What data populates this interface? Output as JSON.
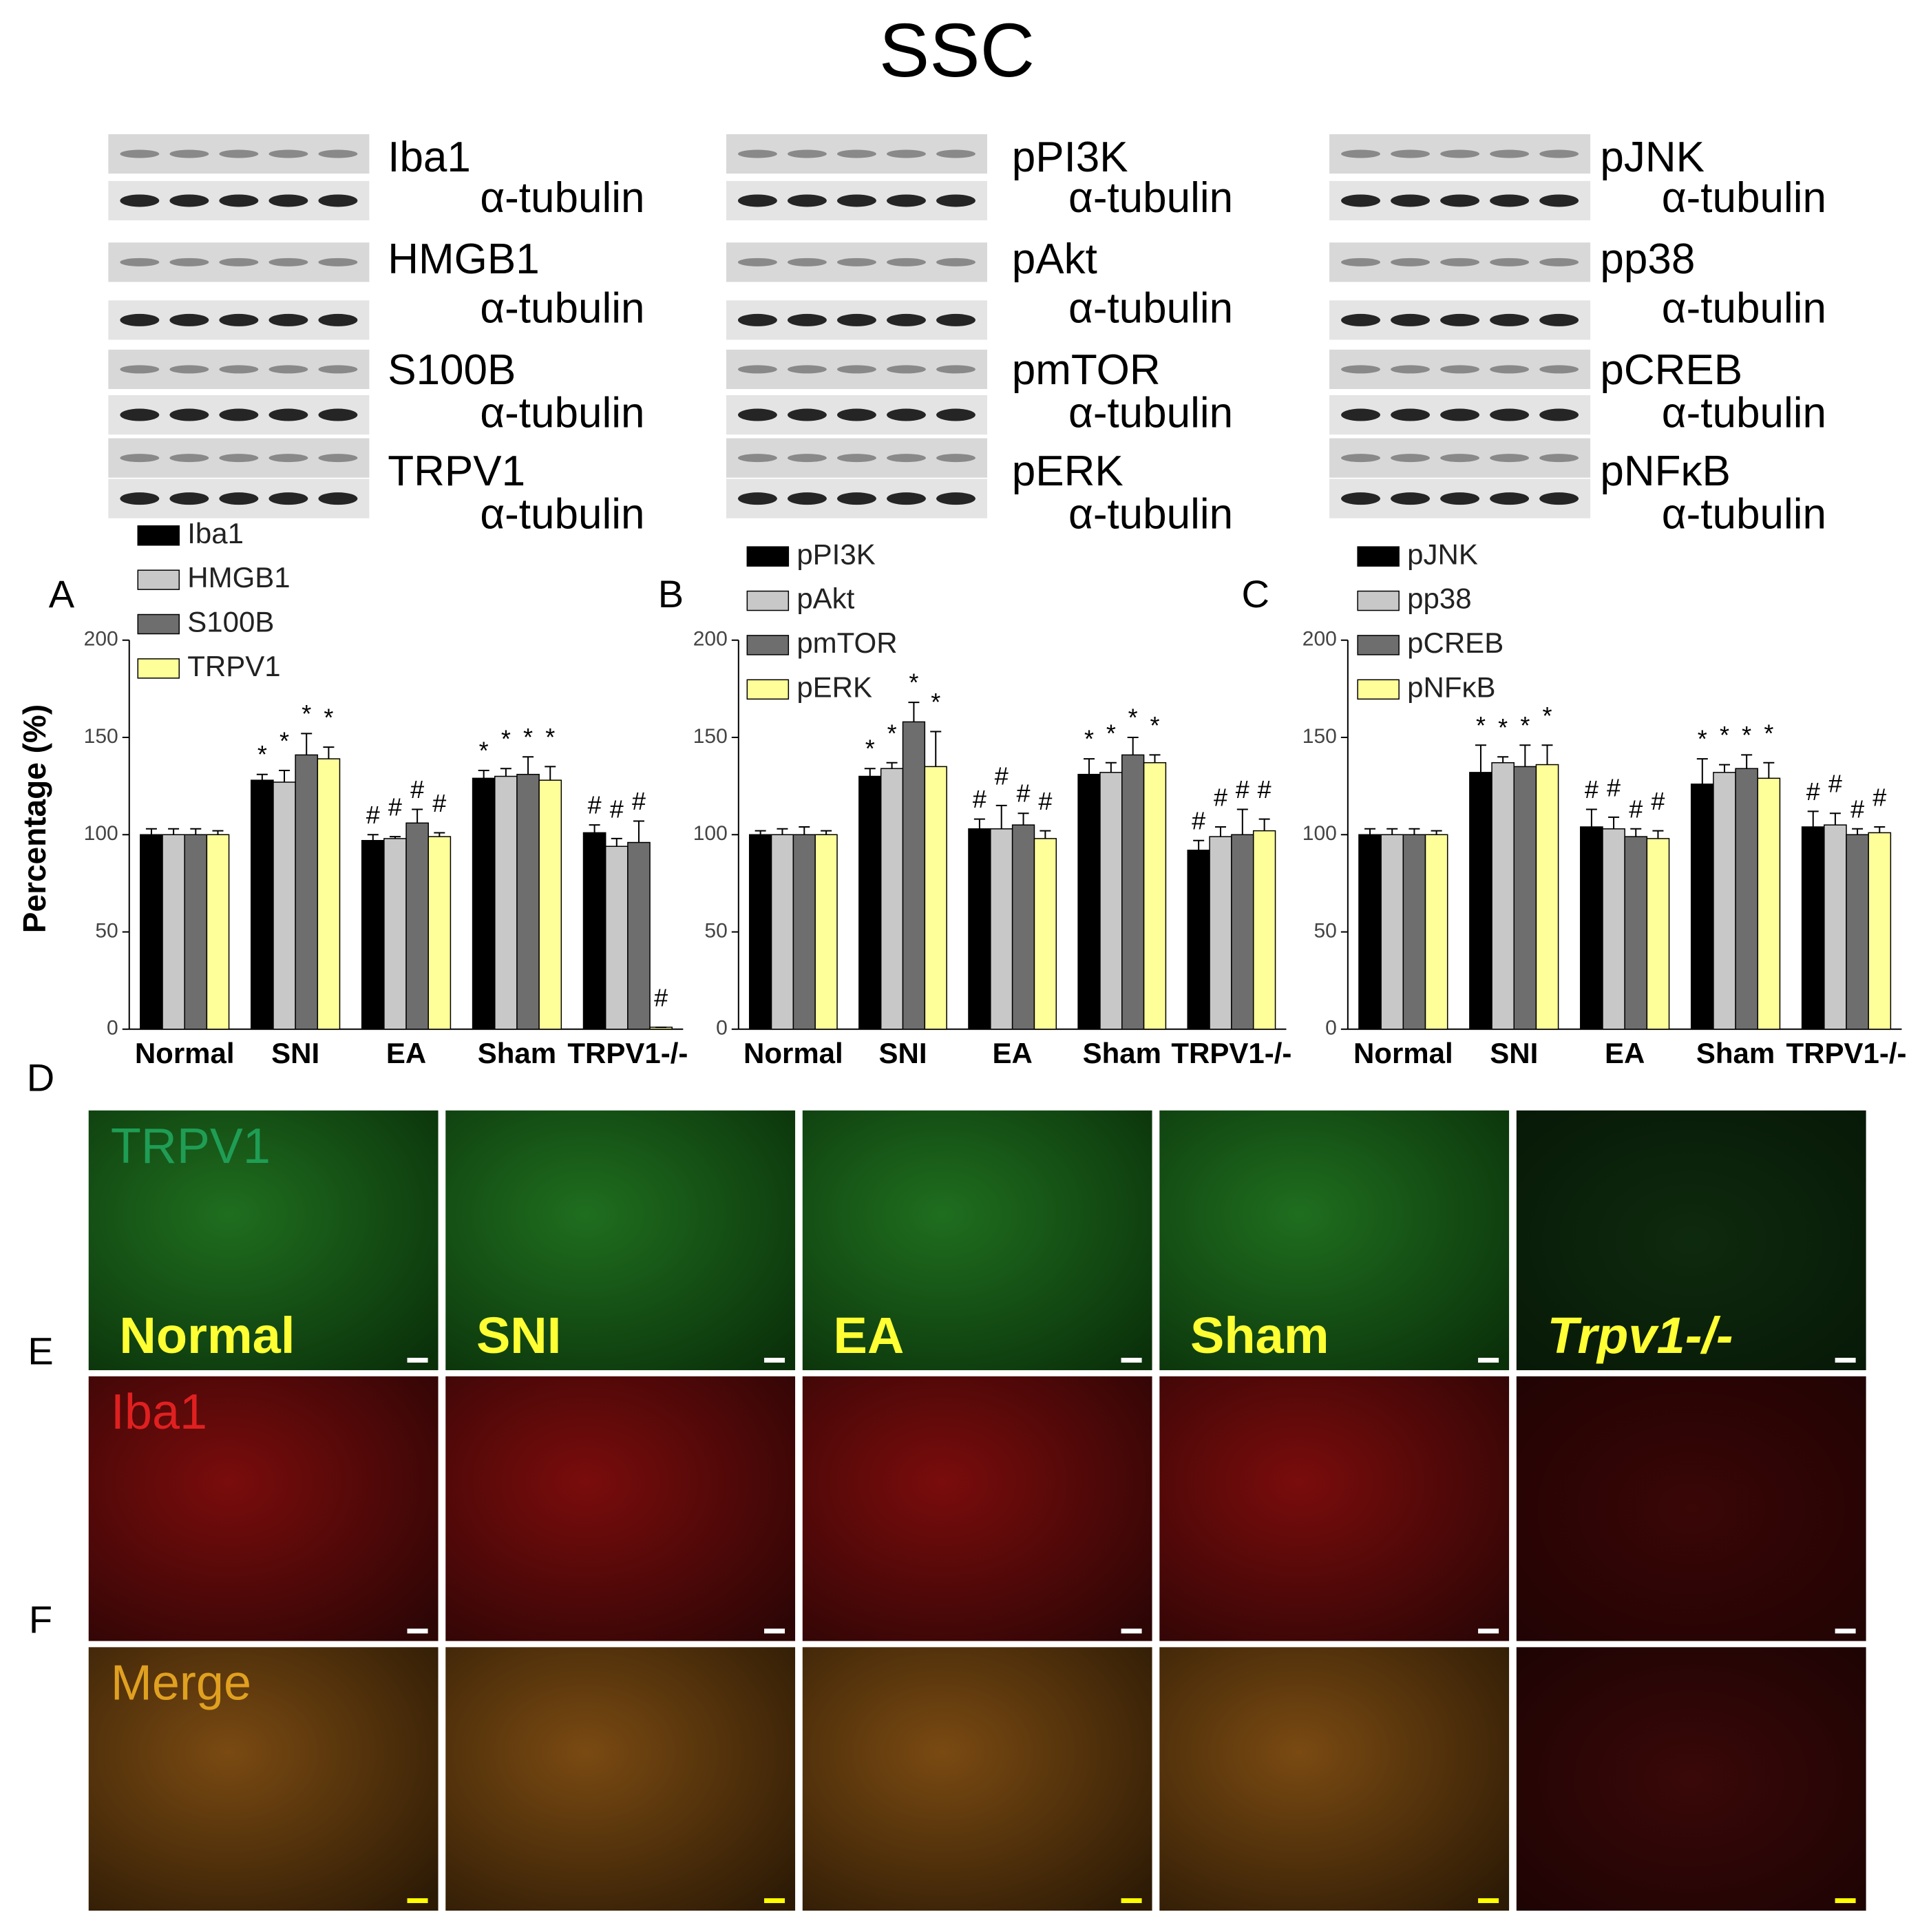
{
  "title": "SSC",
  "blots": [
    {
      "labels": [
        "Iba1",
        "α-tubulin",
        "HMGB1",
        "α-tubulin",
        "S100B",
        "α-tubulin",
        "TRPV1",
        "α-tubulin"
      ]
    },
    {
      "labels": [
        "pPI3K",
        "α-tubulin",
        "pAkt",
        "α-tubulin",
        "pmTOR",
        "α-tubulin",
        "pERK",
        "α-tubulin"
      ]
    },
    {
      "labels": [
        "pJNK",
        "α-tubulin",
        "pp38",
        "α-tubulin",
        "pCREB",
        "α-tubulin",
        "pNFκB",
        "α-tubulin"
      ]
    }
  ],
  "chart_data": [
    {
      "type": "bar",
      "panel": "A",
      "ylabel": "Percentage (%)",
      "categories": [
        "Normal",
        "SNI",
        "EA",
        "Sham",
        "TRPV1-/-"
      ],
      "ylim": [
        0,
        200
      ],
      "yticks": [
        0,
        50,
        100,
        150,
        200
      ],
      "series": [
        {
          "name": "Iba1",
          "color": "#000000",
          "values": [
            100,
            128,
            97,
            129,
            101
          ],
          "errors": [
            3,
            3,
            3,
            4,
            4
          ],
          "markers": [
            null,
            "*",
            "#",
            "*",
            "#"
          ]
        },
        {
          "name": "HMGB1",
          "color": "#c8c8c8",
          "values": [
            100,
            127,
            98,
            130,
            94
          ],
          "errors": [
            3,
            6,
            1,
            4,
            4
          ],
          "markers": [
            null,
            "*",
            "#",
            "*",
            "#"
          ]
        },
        {
          "name": "S100B",
          "color": "#6e6e6e",
          "values": [
            100,
            141,
            106,
            131,
            96
          ],
          "errors": [
            3,
            11,
            7,
            9,
            11
          ],
          "markers": [
            null,
            "*",
            "#",
            "*",
            "#"
          ]
        },
        {
          "name": "TRPV1",
          "color": "#ffff99",
          "values": [
            100,
            139,
            99,
            128,
            1
          ],
          "errors": [
            2,
            6,
            2,
            7,
            0
          ],
          "markers": [
            null,
            "*",
            "#",
            "*",
            "#"
          ]
        }
      ]
    },
    {
      "type": "bar",
      "panel": "B",
      "categories": [
        "Normal",
        "SNI",
        "EA",
        "Sham",
        "TRPV1-/-"
      ],
      "ylim": [
        0,
        200
      ],
      "yticks": [
        0,
        50,
        100,
        150,
        200
      ],
      "series": [
        {
          "name": "pPI3K",
          "color": "#000000",
          "values": [
            100,
            130,
            103,
            131,
            92
          ],
          "errors": [
            2,
            4,
            5,
            8,
            5
          ],
          "markers": [
            null,
            "*",
            "#",
            "*",
            "#"
          ]
        },
        {
          "name": "pAkt",
          "color": "#c8c8c8",
          "values": [
            100,
            134,
            103,
            132,
            99
          ],
          "errors": [
            3,
            3,
            12,
            5,
            5
          ],
          "markers": [
            null,
            "*",
            "#",
            "*",
            "#"
          ]
        },
        {
          "name": "pmTOR",
          "color": "#6e6e6e",
          "values": [
            100,
            158,
            105,
            141,
            100
          ],
          "errors": [
            4,
            10,
            6,
            9,
            13
          ],
          "markers": [
            null,
            "*",
            "#",
            "*",
            "#"
          ]
        },
        {
          "name": "pERK",
          "color": "#ffff99",
          "values": [
            100,
            135,
            98,
            137,
            102
          ],
          "errors": [
            2,
            18,
            4,
            4,
            6
          ],
          "markers": [
            null,
            "*",
            "#",
            "*",
            "#"
          ]
        }
      ]
    },
    {
      "type": "bar",
      "panel": "C",
      "categories": [
        "Normal",
        "SNI",
        "EA",
        "Sham",
        "TRPV1-/-"
      ],
      "ylim": [
        0,
        200
      ],
      "yticks": [
        0,
        50,
        100,
        150,
        200
      ],
      "series": [
        {
          "name": "pJNK",
          "color": "#000000",
          "values": [
            100,
            132,
            104,
            126,
            104
          ],
          "errors": [
            3,
            14,
            9,
            13,
            8
          ],
          "markers": [
            null,
            "*",
            "#",
            "*",
            "#"
          ]
        },
        {
          "name": "pp38",
          "color": "#c8c8c8",
          "values": [
            100,
            137,
            103,
            132,
            105
          ],
          "errors": [
            3,
            3,
            6,
            4,
            6
          ],
          "markers": [
            null,
            "*",
            "#",
            "*",
            "#"
          ]
        },
        {
          "name": "pCREB",
          "color": "#6e6e6e",
          "values": [
            100,
            135,
            99,
            134,
            100
          ],
          "errors": [
            3,
            11,
            4,
            7,
            3
          ],
          "markers": [
            null,
            "*",
            "#",
            "*",
            "#"
          ]
        },
        {
          "name": "pNFκB",
          "color": "#ffff99",
          "values": [
            100,
            136,
            98,
            129,
            101
          ],
          "errors": [
            2,
            10,
            4,
            8,
            3
          ],
          "markers": [
            null,
            "*",
            "#",
            "*",
            "#"
          ]
        }
      ]
    }
  ],
  "images": {
    "panel_letters": [
      "D",
      "E",
      "F"
    ],
    "stains": [
      "TRPV1",
      "Iba1",
      "Merge"
    ],
    "groups": [
      "Normal",
      "SNI",
      "EA",
      "Sham",
      "Trpv1-/-"
    ]
  }
}
